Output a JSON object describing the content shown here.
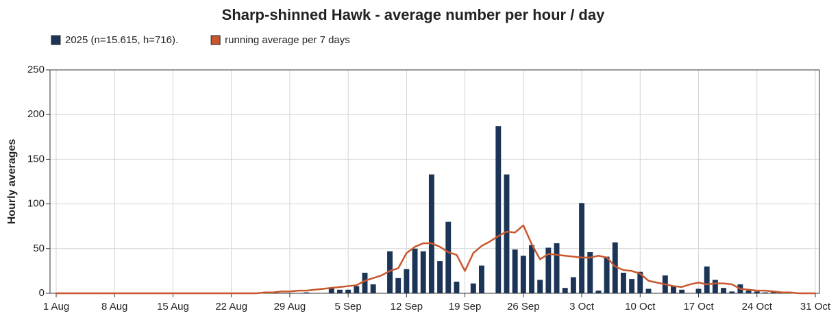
{
  "chart_data": {
    "type": "bar_line",
    "title": "Sharp-shinned Hawk - average number per hour / day",
    "y_label": "Hourly averages",
    "categories": [
      "1 Aug",
      null,
      null,
      null,
      null,
      null,
      null,
      "8 Aug",
      null,
      null,
      null,
      null,
      null,
      null,
      "15 Aug",
      null,
      null,
      null,
      null,
      null,
      null,
      "22 Aug",
      null,
      null,
      null,
      null,
      null,
      null,
      "29 Aug",
      null,
      null,
      null,
      null,
      null,
      null,
      "5 Sep",
      null,
      null,
      null,
      null,
      null,
      null,
      "12 Sep",
      null,
      null,
      null,
      null,
      null,
      null,
      "19 Sep",
      null,
      null,
      null,
      null,
      null,
      null,
      "26 Sep",
      null,
      null,
      null,
      null,
      null,
      null,
      "3 Oct",
      null,
      null,
      null,
      null,
      null,
      null,
      "10 Oct",
      null,
      null,
      null,
      null,
      null,
      null,
      "17 Oct",
      null,
      null,
      null,
      null,
      null,
      null,
      "24 Oct",
      null,
      null,
      null,
      null,
      null,
      null,
      "31 Oct"
    ],
    "series": [
      {
        "name": "2025 (n=15.615, h=716).",
        "kind": "bar",
        "color": "#1c3557",
        "values": [
          0,
          0,
          0,
          0,
          0,
          0,
          0,
          0,
          0,
          0,
          0,
          0,
          0,
          0,
          0,
          0,
          0,
          0,
          0,
          0,
          0,
          0,
          0,
          0,
          0,
          0,
          0,
          0,
          0,
          0,
          1,
          0,
          0,
          6,
          4,
          4,
          8,
          23,
          10,
          0,
          47,
          17,
          27,
          50,
          47,
          133,
          36,
          80,
          13,
          0,
          11,
          31,
          0,
          187,
          133,
          49,
          42,
          54,
          15,
          51,
          56,
          6,
          18,
          101,
          46,
          3,
          41,
          57,
          23,
          16,
          24,
          5,
          0,
          20,
          8,
          4,
          0,
          5,
          30,
          15,
          6,
          2,
          10,
          3,
          2,
          1,
          2,
          1,
          0,
          0,
          0,
          0
        ]
      },
      {
        "name": "running average per 7 days",
        "kind": "line",
        "color": "#c8572e",
        "values": [
          0,
          0,
          0,
          0,
          0,
          0,
          0,
          0,
          0,
          0,
          0,
          0,
          0,
          0,
          0,
          0,
          0,
          0,
          0,
          0,
          0,
          0,
          0,
          0,
          0,
          1,
          1,
          2,
          2,
          3,
          3,
          4,
          5,
          6,
          7,
          8,
          9,
          14,
          17,
          20,
          25,
          28,
          45,
          52,
          56,
          56,
          52,
          46,
          43,
          25,
          45,
          53,
          58,
          64,
          69,
          68,
          76,
          55,
          38,
          44,
          43,
          42,
          41,
          40,
          40,
          42,
          40,
          30,
          26,
          25,
          22,
          14,
          12,
          10,
          8,
          7,
          10,
          12,
          10,
          11,
          11,
          10,
          5,
          4,
          3,
          3,
          2,
          1,
          1,
          0,
          0,
          0
        ]
      }
    ],
    "ylim": [
      0,
      250
    ],
    "yticks": [
      0,
      50,
      100,
      150,
      200,
      250
    ],
    "grid": true
  }
}
